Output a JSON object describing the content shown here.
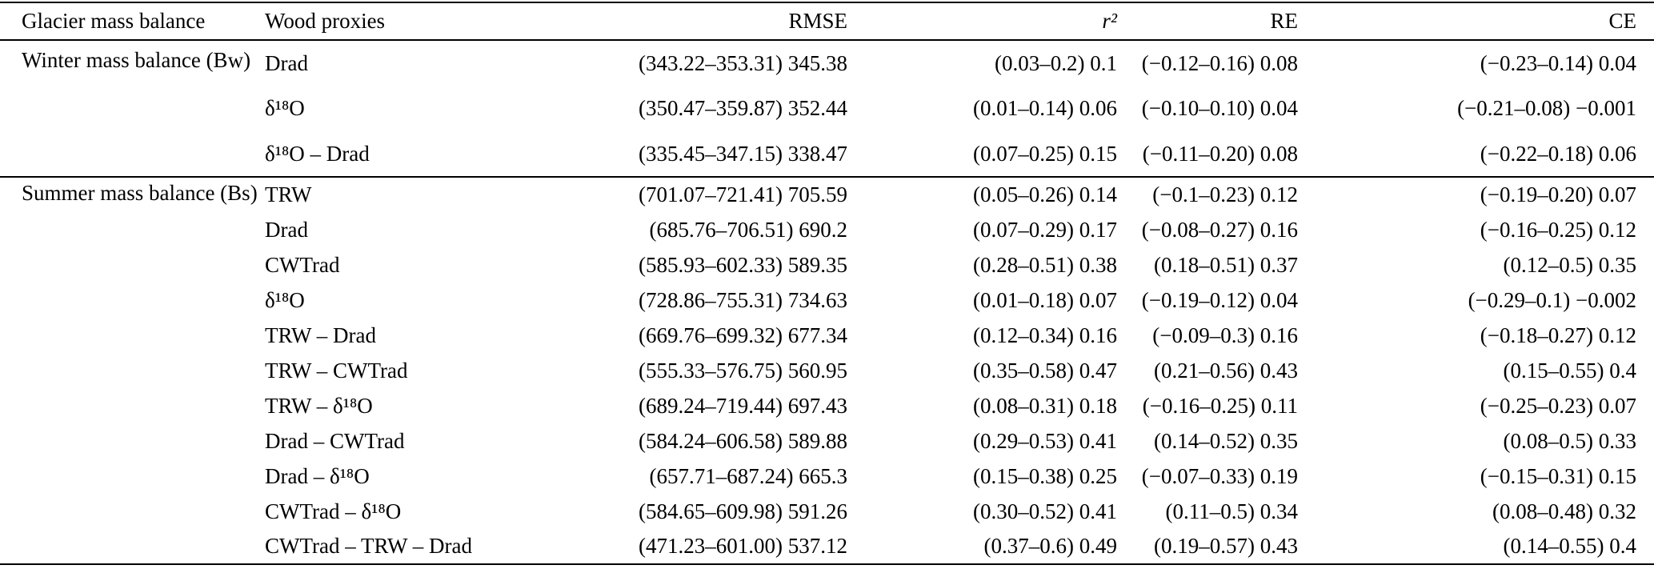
{
  "table": {
    "columns": [
      {
        "label": "Glacier mass balance"
      },
      {
        "label": "Wood proxies"
      },
      {
        "label": "RMSE"
      },
      {
        "label": "r²"
      },
      {
        "label": "RE"
      },
      {
        "label": "CE"
      }
    ],
    "groups": [
      {
        "label": "Winter mass balance (Bw)",
        "rows": [
          {
            "proxy": "Drad",
            "rmse": "(343.22–353.31) 345.38",
            "r2": "(0.03–0.2) 0.1",
            "re": "(−0.12–0.16) 0.08",
            "ce": "(−0.23–0.14) 0.04"
          },
          {
            "proxy": "δ¹⁸O",
            "rmse": "(350.47–359.87) 352.44",
            "r2": "(0.01–0.14) 0.06",
            "re": "(−0.10–0.10) 0.04",
            "ce": "(−0.21–0.08) −0.001"
          },
          {
            "proxy": "δ¹⁸O – Drad",
            "rmse": "(335.45–347.15) 338.47",
            "r2": "(0.07–0.25) 0.15",
            "re": "(−0.11–0.20) 0.08",
            "ce": "(−0.22–0.18) 0.06"
          }
        ]
      },
      {
        "label": "Summer mass balance (Bs)",
        "rows": [
          {
            "proxy": "TRW",
            "rmse": "(701.07–721.41) 705.59",
            "r2": "(0.05–0.26) 0.14",
            "re": "(−0.1–0.23) 0.12",
            "ce": "(−0.19–0.20) 0.07"
          },
          {
            "proxy": "Drad",
            "rmse": "(685.76–706.51) 690.2",
            "r2": "(0.07–0.29) 0.17",
            "re": "(−0.08–0.27) 0.16",
            "ce": "(−0.16–0.25) 0.12"
          },
          {
            "proxy": "CWTrad",
            "rmse": "(585.93–602.33) 589.35",
            "r2": "(0.28–0.51) 0.38",
            "re": "(0.18–0.51) 0.37",
            "ce": "(0.12–0.5) 0.35"
          },
          {
            "proxy": "δ¹⁸O",
            "rmse": "(728.86–755.31) 734.63",
            "r2": "(0.01–0.18) 0.07",
            "re": "(−0.19–0.12) 0.04",
            "ce": "(−0.29–0.1) −0.002"
          },
          {
            "proxy": "TRW – Drad",
            "rmse": "(669.76–699.32) 677.34",
            "r2": "(0.12–0.34) 0.16",
            "re": "(−0.09–0.3) 0.16",
            "ce": "(−0.18–0.27) 0.12"
          },
          {
            "proxy": "TRW – CWTrad",
            "rmse": "(555.33–576.75) 560.95",
            "r2": "(0.35–0.58) 0.47",
            "re": "(0.21–0.56) 0.43",
            "ce": "(0.15–0.55) 0.4"
          },
          {
            "proxy": "TRW – δ¹⁸O",
            "rmse": "(689.24–719.44) 697.43",
            "r2": "(0.08–0.31) 0.18",
            "re": "(−0.16–0.25) 0.11",
            "ce": "(−0.25–0.23) 0.07"
          },
          {
            "proxy": "Drad – CWTrad",
            "rmse": "(584.24–606.58) 589.88",
            "r2": "(0.29–0.53) 0.41",
            "re": "(0.14–0.52) 0.35",
            "ce": "(0.08–0.5) 0.33"
          },
          {
            "proxy": "Drad – δ¹⁸O",
            "rmse": "(657.71–687.24) 665.3",
            "r2": "(0.15–0.38) 0.25",
            "re": "(−0.07–0.33) 0.19",
            "ce": "(−0.15–0.31) 0.15"
          },
          {
            "proxy": "CWTrad – δ¹⁸O",
            "rmse": "(584.65–609.98) 591.26",
            "r2": "(0.30–0.52) 0.41",
            "re": "(0.11–0.5) 0.34",
            "ce": "(0.08–0.48) 0.32"
          },
          {
            "proxy": "CWTrad – TRW – Drad",
            "rmse": "(471.23–601.00) 537.12",
            "r2": "(0.37–0.6) 0.49",
            "re": "(0.19–0.57) 0.43",
            "ce": "(0.14–0.55) 0.4"
          }
        ]
      }
    ]
  }
}
